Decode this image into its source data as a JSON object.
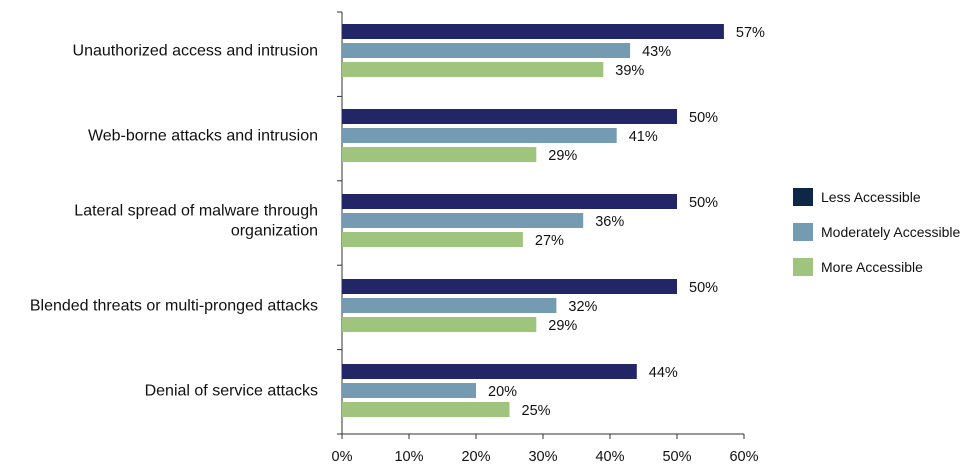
{
  "chart_data": {
    "type": "bar",
    "orientation": "horizontal",
    "title": "",
    "xlabel": "",
    "ylabel": "",
    "categories": [
      [
        "Unauthorized access and intrusion"
      ],
      [
        "Web-borne attacks and intrusion"
      ],
      [
        "Lateral spread of malware through",
        "organization"
      ],
      [
        "Blended threats or multi-pronged attacks"
      ],
      [
        "Denial of service attacks"
      ]
    ],
    "series": [
      {
        "name": "Less Accessible",
        "color": "#222566",
        "values": [
          57,
          50,
          50,
          50,
          44
        ]
      },
      {
        "name": "Moderately Accessible",
        "color": "#759bb3",
        "values": [
          43,
          41,
          36,
          32,
          20
        ]
      },
      {
        "name": "More Accessible",
        "color": "#9ec47d",
        "values": [
          39,
          29,
          27,
          29,
          25
        ]
      }
    ],
    "value_suffix": "%",
    "xlim": [
      0,
      60
    ],
    "xticks": [
      0,
      10,
      20,
      30,
      40,
      50,
      60
    ],
    "xtick_labels": [
      "0%",
      "10%",
      "20%",
      "30%",
      "40%",
      "50%",
      "60%"
    ],
    "grid": false,
    "legend": {
      "placement": "right",
      "swatch_colors": [
        "#0d2747",
        "#759bb3",
        "#9ec47d"
      ]
    }
  }
}
